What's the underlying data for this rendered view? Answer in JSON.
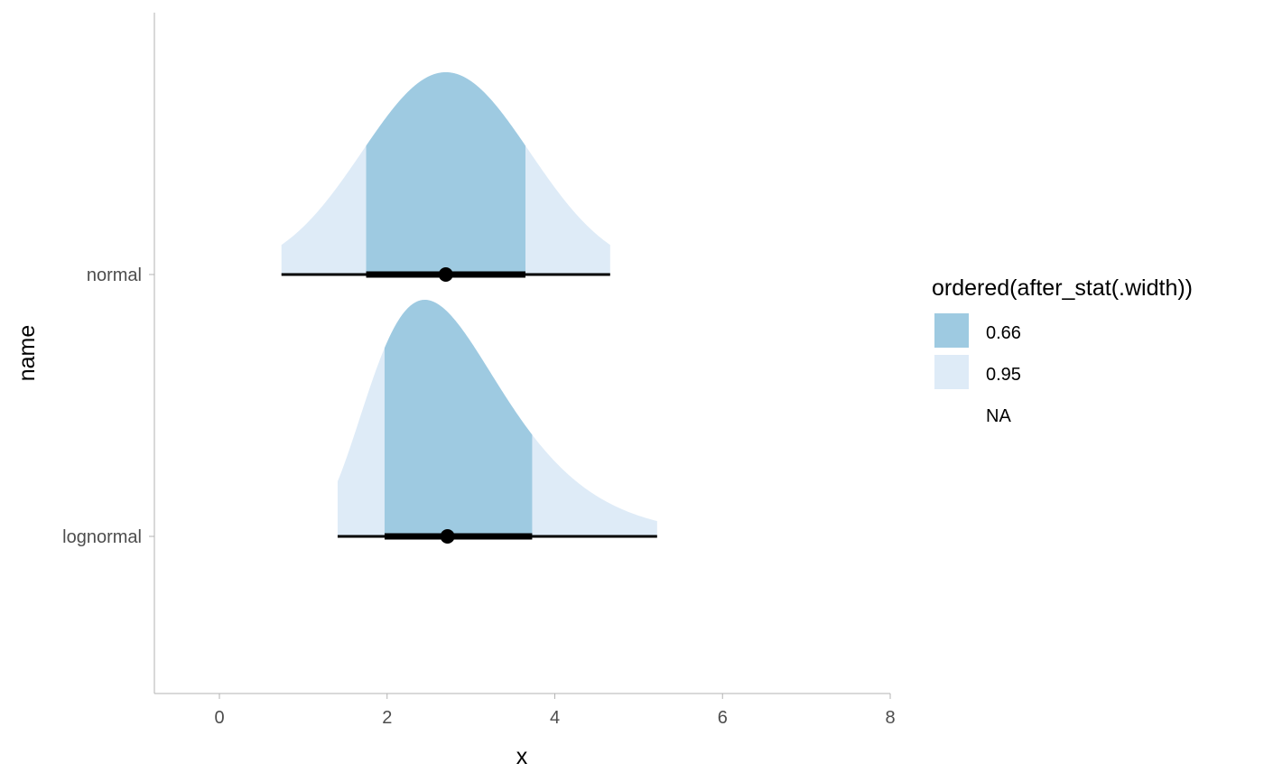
{
  "chart_data": {
    "type": "halfeye",
    "title": "",
    "xlabel": "x",
    "ylabel": "name",
    "xlim": [
      -0.8,
      8.0
    ],
    "x_ticks": [
      0,
      2,
      4,
      6,
      8
    ],
    "x_tick_labels": [
      "0",
      "2",
      "4",
      "6",
      "8"
    ],
    "categories": [
      "lognormal",
      "normal"
    ],
    "grid": false,
    "legend_position": "right",
    "legend": {
      "title": "ordered(after_stat(.width))",
      "entries": [
        {
          "label": "0.66",
          "color": "#9ecae1"
        },
        {
          "label": "0.95",
          "color": "#deebf7"
        },
        {
          "label": "NA",
          "color": ""
        }
      ]
    },
    "series": [
      {
        "category": "normal",
        "distribution": "normal",
        "point": 2.7,
        "interval_66": [
          1.75,
          3.65
        ],
        "interval_95": [
          0.74,
          4.66
        ],
        "density_peak_x": 2.7
      },
      {
        "category": "lognormal",
        "distribution": "lognormal",
        "point": 2.72,
        "mode": 2.45,
        "interval_66": [
          1.97,
          3.73
        ],
        "interval_95": [
          1.41,
          5.22
        ]
      }
    ]
  },
  "colors": {
    "interval_66": "#9ecae1",
    "interval_95": "#deebf7",
    "point_interval": "#000000",
    "axis_line": "#b3b3b3"
  }
}
